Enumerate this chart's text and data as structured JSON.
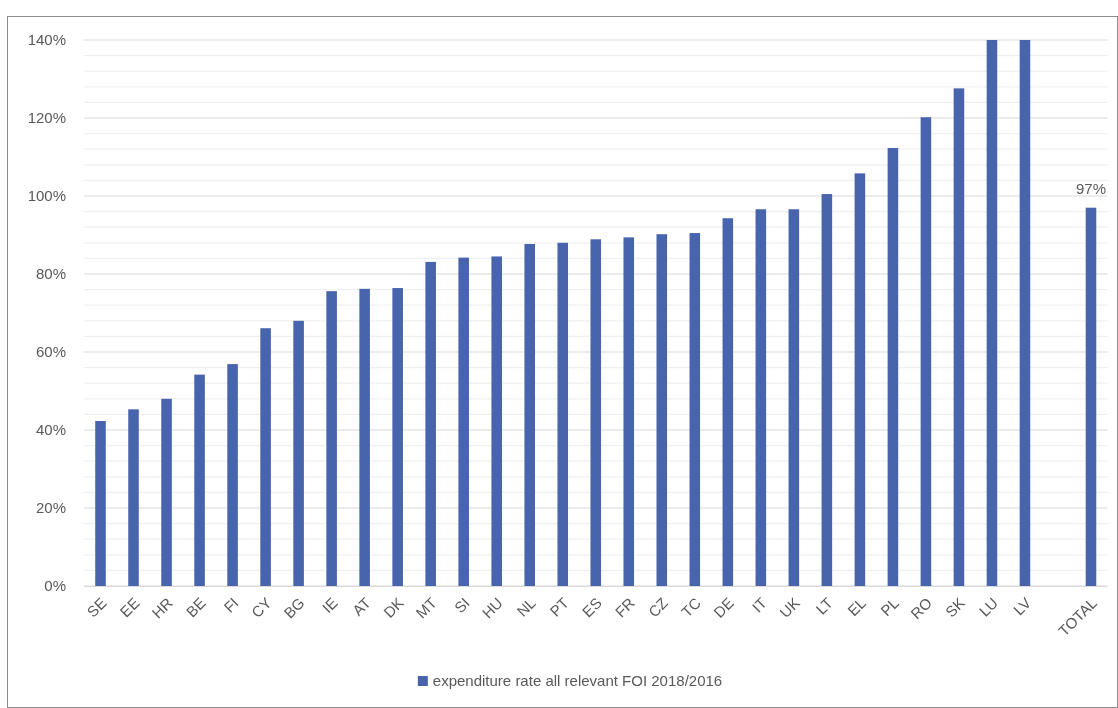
{
  "chart_data": {
    "type": "bar",
    "categories": [
      "SE",
      "EE",
      "HR",
      "BE",
      "FI",
      "CY",
      "BG",
      "IE",
      "AT",
      "DK",
      "MT",
      "SI",
      "HU",
      "NL",
      "PT",
      "ES",
      "FR",
      "CZ",
      "TC",
      "DE",
      "IT",
      "UK",
      "LT",
      "EL",
      "PL",
      "RO",
      "SK",
      "LU",
      "LV",
      null,
      "TOTAL"
    ],
    "series": [
      {
        "name": "expenditure rate all relevant FOI 2018/2016",
        "color": "#4864ac",
        "values": [
          42.3,
          45.3,
          48.0,
          54.2,
          56.9,
          66.1,
          68.0,
          75.6,
          76.2,
          76.4,
          83.1,
          84.2,
          84.5,
          87.7,
          88.0,
          88.9,
          89.4,
          90.2,
          90.5,
          94.3,
          96.6,
          96.6,
          100.5,
          105.8,
          112.3,
          120.2,
          127.6,
          140,
          140,
          null,
          97
        ],
        "value_labels": [
          null,
          null,
          null,
          null,
          null,
          null,
          null,
          null,
          null,
          null,
          null,
          null,
          null,
          null,
          null,
          null,
          null,
          null,
          null,
          null,
          null,
          null,
          null,
          null,
          null,
          null,
          null,
          null,
          null,
          null,
          "97%"
        ]
      }
    ],
    "ylim": [
      0,
      140
    ],
    "yticks": [
      {
        "value": 0,
        "label": "0%"
      },
      {
        "value": 4,
        "label": null
      },
      {
        "value": 8,
        "label": null
      },
      {
        "value": 12,
        "label": null
      },
      {
        "value": 16,
        "label": null
      },
      {
        "value": 20,
        "label": "20%"
      },
      {
        "value": 24,
        "label": null
      },
      {
        "value": 28,
        "label": null
      },
      {
        "value": 32,
        "label": null
      },
      {
        "value": 36,
        "label": null
      },
      {
        "value": 40,
        "label": "40%"
      },
      {
        "value": 44,
        "label": null
      },
      {
        "value": 48,
        "label": null
      },
      {
        "value": 52,
        "label": null
      },
      {
        "value": 56,
        "label": null
      },
      {
        "value": 60,
        "label": "60%"
      },
      {
        "value": 64,
        "label": null
      },
      {
        "value": 68,
        "label": null
      },
      {
        "value": 72,
        "label": null
      },
      {
        "value": 76,
        "label": null
      },
      {
        "value": 80,
        "label": "80%"
      },
      {
        "value": 84,
        "label": null
      },
      {
        "value": 88,
        "label": null
      },
      {
        "value": 92,
        "label": null
      },
      {
        "value": 96,
        "label": null
      },
      {
        "value": 100,
        "label": "100%"
      },
      {
        "value": 104,
        "label": null
      },
      {
        "value": 108,
        "label": null
      },
      {
        "value": 112,
        "label": null
      },
      {
        "value": 116,
        "label": null
      },
      {
        "value": 120,
        "label": "120%"
      },
      {
        "value": 124,
        "label": null
      },
      {
        "value": 128,
        "label": null
      },
      {
        "value": 132,
        "label": null
      },
      {
        "value": 136,
        "label": null
      },
      {
        "value": 140,
        "label": "140%"
      }
    ],
    "grid": "y",
    "legend": "bottom"
  }
}
